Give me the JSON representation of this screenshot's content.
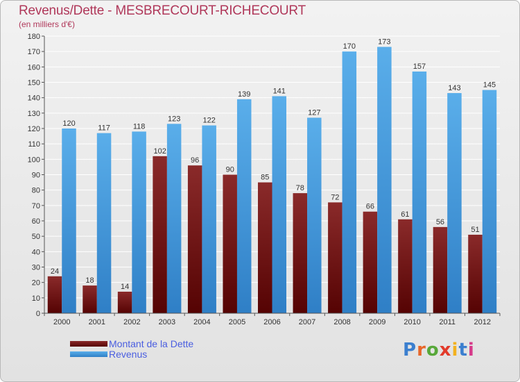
{
  "header": {
    "title": "Revenus/Dette - MESBRECOURT-RICHECOURT",
    "subtitle": "(en milliers d'€)"
  },
  "legend": {
    "items": [
      {
        "label": "Montant de la Dette",
        "color": "#6b0a0a"
      },
      {
        "label": "Revenus",
        "color": "#3a8fd8"
      }
    ]
  },
  "logo": {
    "text": "Proxiti",
    "colors": [
      "#3b7fcf",
      "#e8662a",
      "#58a83a",
      "#e23a2a",
      "#f2b11e",
      "#3b7fcf",
      "#d63a8a"
    ]
  },
  "chart_data": {
    "type": "bar",
    "categories": [
      "2000",
      "2001",
      "2002",
      "2003",
      "2004",
      "2005",
      "2006",
      "2007",
      "2008",
      "2009",
      "2010",
      "2011",
      "2012"
    ],
    "series": [
      {
        "name": "Montant de la Dette",
        "values": [
          24,
          18,
          14,
          102,
          96,
          90,
          85,
          78,
          72,
          66,
          61,
          56,
          51
        ],
        "color": "#6b0a0a"
      },
      {
        "name": "Revenus",
        "values": [
          120,
          117,
          118,
          123,
          122,
          139,
          141,
          127,
          170,
          173,
          157,
          143,
          145
        ],
        "color": "#3a8fd8"
      }
    ],
    "ylim": [
      0,
      180
    ],
    "ytick_step": 10,
    "grid": true
  }
}
